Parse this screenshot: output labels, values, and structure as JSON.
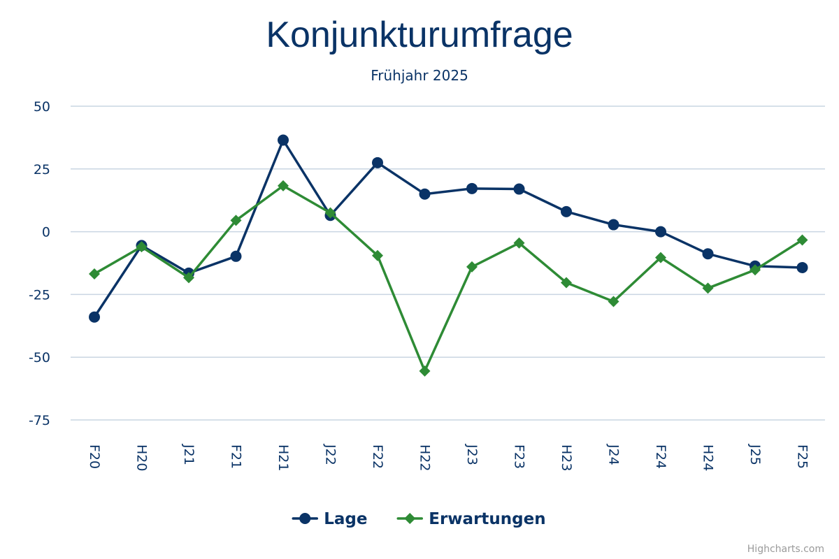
{
  "chart_data": {
    "type": "line",
    "title": "Konjunkturumfrage",
    "subtitle": "Frühjahr 2025",
    "xlabel": "",
    "ylabel": "",
    "categories": [
      "F20",
      "H20",
      "J21",
      "F21",
      "H21",
      "J22",
      "F22",
      "H22",
      "J23",
      "F23",
      "H23",
      "J24",
      "F24",
      "H24",
      "J25",
      "F25"
    ],
    "ylim": [
      -75,
      50
    ],
    "yticks": [
      50,
      25,
      0,
      -25,
      -50,
      -75
    ],
    "grid": true,
    "legend_position": "bottom-center",
    "series": [
      {
        "name": "Lage",
        "color": "#0a3366",
        "marker": "circle",
        "values": [
          -34,
          -5.5,
          -16.5,
          -9.8,
          36.5,
          6.5,
          27.5,
          15,
          17.2,
          17,
          8,
          2.8,
          0,
          -8.8,
          -13.7,
          -14.3
        ]
      },
      {
        "name": "Erwartungen",
        "color": "#2e8b35",
        "marker": "diamond",
        "values": [
          -16.8,
          -6,
          -18.3,
          4.5,
          18.3,
          7.5,
          -9.5,
          -55.5,
          -14,
          -4.5,
          -20.3,
          -27.8,
          -10.3,
          -22.5,
          -15.2,
          -3.3
        ]
      }
    ]
  },
  "credits": "Highcharts.com"
}
